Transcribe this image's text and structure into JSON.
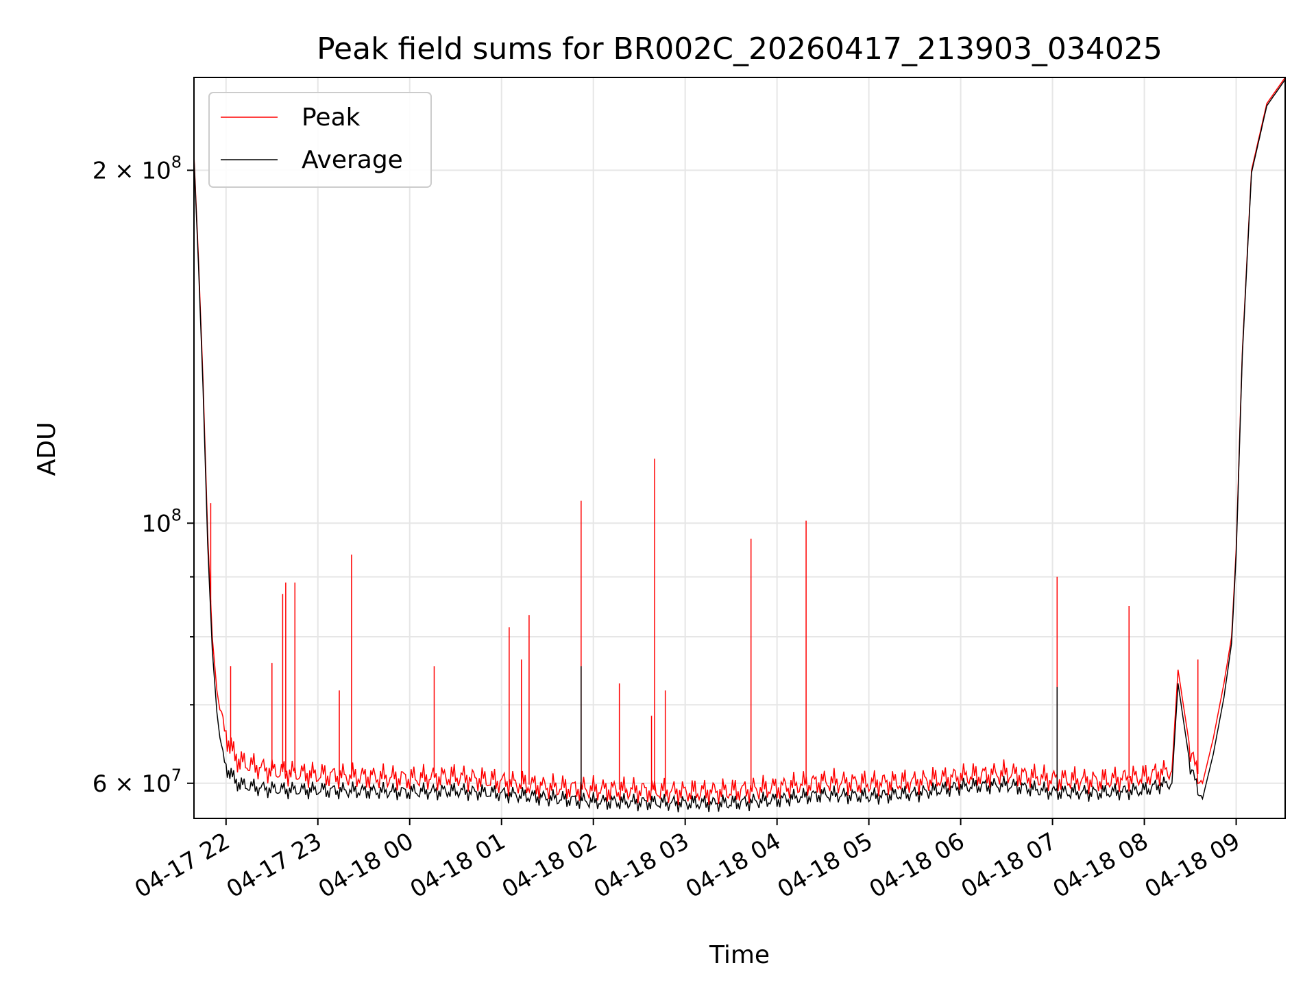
{
  "chart_data": {
    "type": "line",
    "title": "Peak field sums for BR002C_20260417_213903_034025",
    "xlabel": "Time",
    "ylabel": "ADU",
    "yscale": "log",
    "xlim": [
      "2026-04-17T21:39:03",
      "2026-04-18T09:32:00"
    ],
    "ylim": [
      56000000,
      240000000
    ],
    "grid": true,
    "legend_position": "top-left",
    "x_ticks": [
      {
        "value": "2026-04-17T22:00",
        "label": "04-17 22"
      },
      {
        "value": "2026-04-17T23:00",
        "label": "04-17 23"
      },
      {
        "value": "2026-04-18T00:00",
        "label": "04-18 00"
      },
      {
        "value": "2026-04-18T01:00",
        "label": "04-18 01"
      },
      {
        "value": "2026-04-18T02:00",
        "label": "04-18 02"
      },
      {
        "value": "2026-04-18T03:00",
        "label": "04-18 03"
      },
      {
        "value": "2026-04-18T04:00",
        "label": "04-18 04"
      },
      {
        "value": "2026-04-18T05:00",
        "label": "04-18 05"
      },
      {
        "value": "2026-04-18T06:00",
        "label": "04-18 06"
      },
      {
        "value": "2026-04-18T07:00",
        "label": "04-18 07"
      },
      {
        "value": "2026-04-18T08:00",
        "label": "04-18 08"
      },
      {
        "value": "2026-04-18T09:00",
        "label": "04-18 09"
      }
    ],
    "y_ticks": [
      {
        "value": 60000000,
        "base": "6 × 10",
        "exp": "7"
      },
      {
        "value": 100000000,
        "base": "10",
        "exp": "8"
      },
      {
        "value": 200000000,
        "base": "2 × 10",
        "exp": "8"
      }
    ],
    "series": [
      {
        "name": "Peak",
        "color": "#ff0000",
        "x": [
          "2026-04-17T21:39:03",
          "2026-04-17T21:42",
          "2026-04-17T21:45",
          "2026-04-17T21:48",
          "2026-04-17T21:51",
          "2026-04-17T21:54",
          "2026-04-17T21:57",
          "2026-04-17T22:00",
          "2026-04-17T22:05",
          "2026-04-17T22:10",
          "2026-04-17T22:20",
          "2026-04-17T22:30",
          "2026-04-17T22:45",
          "2026-04-17T23:00",
          "2026-04-17T23:30",
          "2026-04-18T00:00",
          "2026-04-18T00:30",
          "2026-04-18T01:00",
          "2026-04-18T01:30",
          "2026-04-18T02:00",
          "2026-04-18T02:30",
          "2026-04-18T03:00",
          "2026-04-18T03:30",
          "2026-04-18T04:00",
          "2026-04-18T04:30",
          "2026-04-18T05:00",
          "2026-04-18T05:30",
          "2026-04-18T06:00",
          "2026-04-18T06:30",
          "2026-04-18T07:00",
          "2026-04-18T07:30",
          "2026-04-18T08:00",
          "2026-04-18T08:10",
          "2026-04-18T08:18",
          "2026-04-18T08:22",
          "2026-04-18T08:30",
          "2026-04-18T08:34",
          "2026-04-18T08:38",
          "2026-04-18T08:45",
          "2026-04-18T08:52",
          "2026-04-18T08:57",
          "2026-04-18T09:00",
          "2026-04-18T09:04",
          "2026-04-18T09:10",
          "2026-04-18T09:20",
          "2026-04-18T09:32"
        ],
        "y": [
          206000000,
          168000000,
          132000000,
          98000000,
          80000000,
          72000000,
          68000000,
          66000000,
          63500000,
          62500000,
          62000000,
          61500000,
          61200000,
          61000000,
          60800000,
          60600000,
          60800000,
          60200000,
          59600000,
          59300000,
          59200000,
          59000000,
          59100000,
          59500000,
          60200000,
          60000000,
          60200000,
          60800000,
          61200000,
          60500000,
          60300000,
          60800000,
          61300000,
          61500000,
          75000000,
          64000000,
          61500000,
          60000000,
          65500000,
          73000000,
          80000000,
          95000000,
          140000000,
          200000000,
          228000000,
          240000000
        ],
        "spikes": [
          {
            "x": "2026-04-17T21:50",
            "y": 104000000
          },
          {
            "x": "2026-04-17T22:03",
            "y": 75500000
          },
          {
            "x": "2026-04-17T22:30",
            "y": 76000000
          },
          {
            "x": "2026-04-17T22:37",
            "y": 87000000
          },
          {
            "x": "2026-04-17T22:39",
            "y": 89000000
          },
          {
            "x": "2026-04-17T22:45",
            "y": 89000000
          },
          {
            "x": "2026-04-17T23:14",
            "y": 72000000
          },
          {
            "x": "2026-04-17T23:22",
            "y": 94000000
          },
          {
            "x": "2026-04-18T00:16",
            "y": 75500000
          },
          {
            "x": "2026-04-18T01:05",
            "y": 81500000
          },
          {
            "x": "2026-04-18T01:13",
            "y": 76500000
          },
          {
            "x": "2026-04-18T01:18",
            "y": 83500000
          },
          {
            "x": "2026-04-18T01:52",
            "y": 104500000
          },
          {
            "x": "2026-04-18T02:17",
            "y": 73000000
          },
          {
            "x": "2026-04-18T02:38",
            "y": 68500000
          },
          {
            "x": "2026-04-18T02:40",
            "y": 113500000
          },
          {
            "x": "2026-04-18T02:47",
            "y": 72000000
          },
          {
            "x": "2026-04-18T03:43",
            "y": 97000000
          },
          {
            "x": "2026-04-18T04:19",
            "y": 100500000
          },
          {
            "x": "2026-04-18T07:03",
            "y": 90000000
          },
          {
            "x": "2026-04-18T07:50",
            "y": 85000000
          },
          {
            "x": "2026-04-18T08:35",
            "y": 76500000
          }
        ]
      },
      {
        "name": "Average",
        "color": "#000000",
        "x": [
          "2026-04-17T21:39:03",
          "2026-04-17T21:42",
          "2026-04-17T21:45",
          "2026-04-17T21:48",
          "2026-04-17T21:51",
          "2026-04-17T21:54",
          "2026-04-17T21:57",
          "2026-04-17T22:00",
          "2026-04-17T22:05",
          "2026-04-17T22:10",
          "2026-04-17T22:20",
          "2026-04-17T22:30",
          "2026-04-17T22:45",
          "2026-04-17T23:00",
          "2026-04-17T23:30",
          "2026-04-18T00:00",
          "2026-04-18T00:30",
          "2026-04-18T01:00",
          "2026-04-18T01:30",
          "2026-04-18T02:00",
          "2026-04-18T02:30",
          "2026-04-18T03:00",
          "2026-04-18T03:30",
          "2026-04-18T04:00",
          "2026-04-18T04:30",
          "2026-04-18T05:00",
          "2026-04-18T05:30",
          "2026-04-18T06:00",
          "2026-04-18T06:30",
          "2026-04-18T07:00",
          "2026-04-18T07:30",
          "2026-04-18T08:00",
          "2026-04-18T08:10",
          "2026-04-18T08:18",
          "2026-04-18T08:22",
          "2026-04-18T08:30",
          "2026-04-18T08:34",
          "2026-04-18T08:38",
          "2026-04-18T08:45",
          "2026-04-18T08:52",
          "2026-04-18T08:57",
          "2026-04-18T09:00",
          "2026-04-18T09:04",
          "2026-04-18T09:10",
          "2026-04-18T09:20",
          "2026-04-18T09:32"
        ],
        "y": [
          205000000,
          166000000,
          130000000,
          96000000,
          78000000,
          69000000,
          64000000,
          62000000,
          60500000,
          59800000,
          59500000,
          59300000,
          59200000,
          59200000,
          59100000,
          59000000,
          59100000,
          58800000,
          58300000,
          57900000,
          57800000,
          57700000,
          57700000,
          58100000,
          58700000,
          58500000,
          58800000,
          59600000,
          59800000,
          59000000,
          58900000,
          59200000,
          59800000,
          60000000,
          73000000,
          62000000,
          59800000,
          58200000,
          63500000,
          71000000,
          79000000,
          94000000,
          139000000,
          199000000,
          227000000,
          239000000
        ],
        "spikes": [
          {
            "x": "2026-04-18T01:52",
            "y": 75500000
          },
          {
            "x": "2026-04-18T07:03",
            "y": 72500000
          }
        ]
      }
    ]
  }
}
